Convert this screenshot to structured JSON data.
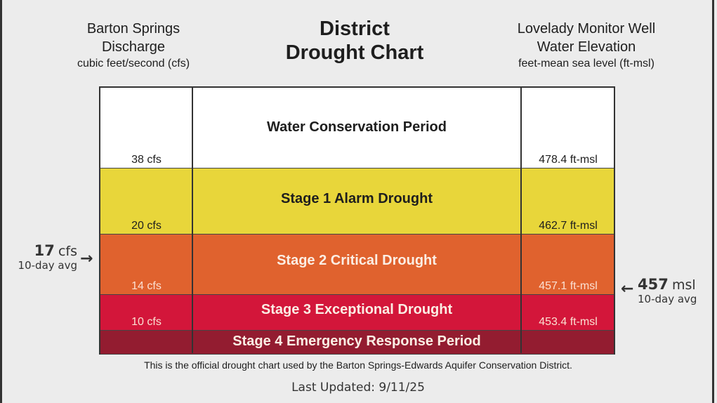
{
  "left_header": {
    "line1": "Barton Springs",
    "line2": "Discharge",
    "line3": "cubic feet/second (cfs)"
  },
  "title": {
    "line1": "District",
    "line2": "Drought Chart"
  },
  "right_header": {
    "line1": "Lovelady Monitor Well",
    "line2": "Water Elevation",
    "line3": "feet-mean sea level (ft-msl)"
  },
  "chart_data": {
    "type": "table",
    "stages": [
      {
        "name": "Water Conservation Period",
        "cfs": "38 cfs",
        "msl": "478.4 ft-msl",
        "color": "#ffffff"
      },
      {
        "name": "Stage 1 Alarm Drought",
        "cfs": "20 cfs",
        "msl": "462.7 ft-msl",
        "color": "#e8d63a"
      },
      {
        "name": "Stage 2 Critical Drought",
        "cfs": "14 cfs",
        "msl": "457.1 ft-msl",
        "color": "#e0622e"
      },
      {
        "name": "Stage 3 Exceptional Drought",
        "cfs": "10 cfs",
        "msl": "453.4 ft-msl",
        "color": "#d3163a"
      },
      {
        "name": "Stage 4 Emergency Response Period",
        "cfs": "",
        "msl": "",
        "color": "#931c30"
      }
    ]
  },
  "current_left": {
    "value": "17",
    "unit": "cfs",
    "label": "10-day avg",
    "arrow": "arrow-right-icon"
  },
  "current_right": {
    "value": "457",
    "unit": "msl",
    "label": "10-day avg",
    "arrow": "arrow-left-icon"
  },
  "note": "This is the official drought chart used by the Barton Springs-Edwards Aquifer Conservation District.",
  "updated": "Last Updated: 9/11/25"
}
